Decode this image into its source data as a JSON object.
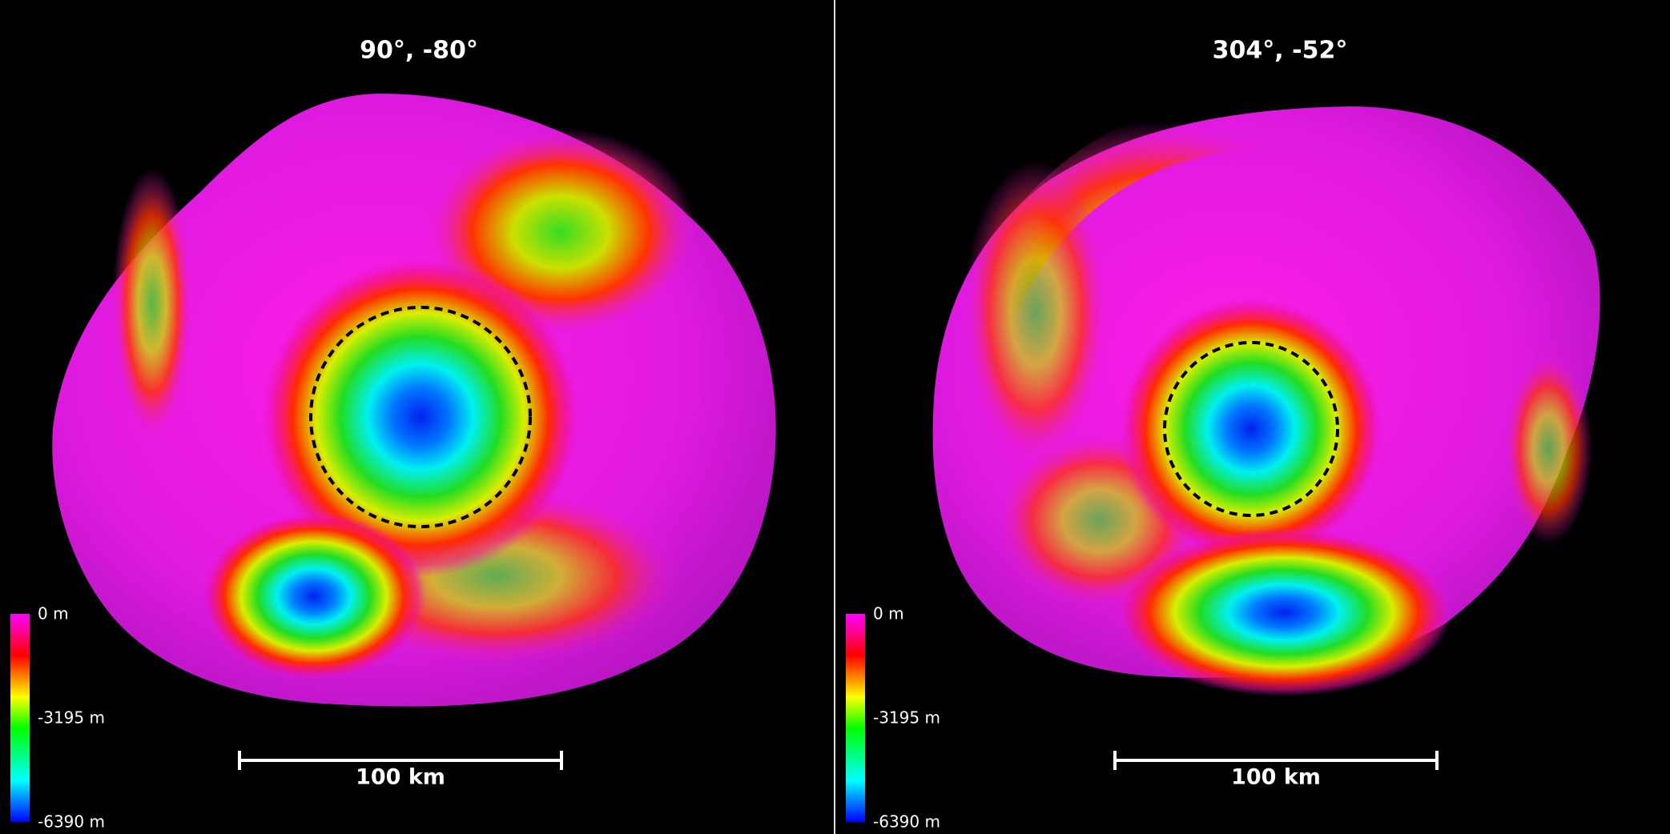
{
  "panels": [
    {
      "title": "90°, -80°",
      "colorbar_labels": [
        "0 m",
        "-3195 m",
        "-6390 m"
      ],
      "scale_label": "100 km"
    },
    {
      "title": "304°, -52°",
      "colorbar_labels": [
        "0 m",
        "-3195 m",
        "-6390 m"
      ],
      "scale_label": "100 km"
    }
  ]
}
